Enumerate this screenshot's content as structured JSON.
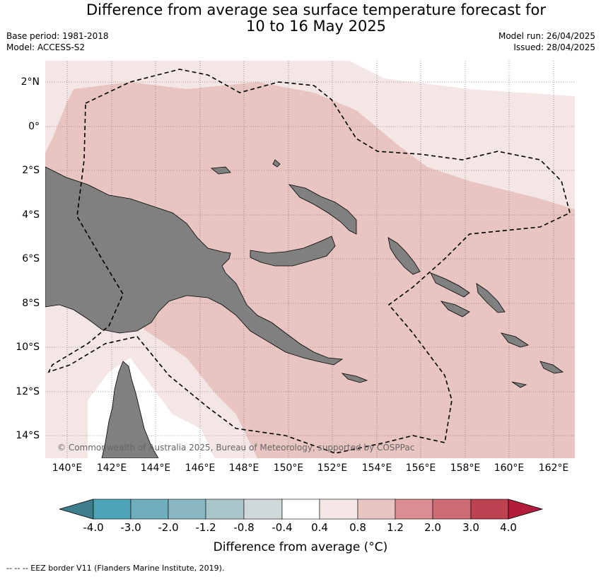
{
  "header": {
    "title_line1": "Difference from average sea surface temperature forecast for",
    "title_line2": "10 to 16 May 2025",
    "base_period": "Base period: 1981-2018",
    "model": "Model: ACCESS-S2",
    "model_run": "Model run: 26/04/2025",
    "issued": "Issued: 28/04/2025"
  },
  "map": {
    "lat_labels": [
      "2°N",
      "0°",
      "2°S",
      "4°S",
      "6°S",
      "8°S",
      "10°S",
      "12°S",
      "14°S"
    ],
    "lon_labels": [
      "140°E",
      "142°E",
      "144°E",
      "146°E",
      "148°E",
      "150°E",
      "152°E",
      "154°E",
      "156°E",
      "158°E",
      "160°E",
      "162°E"
    ],
    "copyright": "© Commonwealth of Australia 2025, Bureau of Meteorology, supported by COSPPac",
    "land_color": "#808080",
    "anomaly_0_4_to_0_8_color": "#f4e6e4",
    "anomaly_0_8_to_1_2_color": "#e8c5c1"
  },
  "colorbar": {
    "ticks": [
      "-4.0",
      "-3.0",
      "-2.0",
      "-1.2",
      "-0.8",
      "-0.4",
      "0.4",
      "0.8",
      "1.2",
      "2.0",
      "3.0",
      "4.0"
    ],
    "colors": [
      "#3f7f8c",
      "#4ba3b5",
      "#6eaebd",
      "#8bb7c2",
      "#a9c7cb",
      "#d0d9da",
      "#ffffff",
      "#f4e6e4",
      "#e8c5c1",
      "#d98e96",
      "#cc6b74",
      "#be4252",
      "#b01c3a"
    ],
    "label": "Difference from average (°C)"
  },
  "footer": {
    "eez_note": "-- -- -- EEZ border V11 (Flanders Marine Institute, 2019)."
  }
}
